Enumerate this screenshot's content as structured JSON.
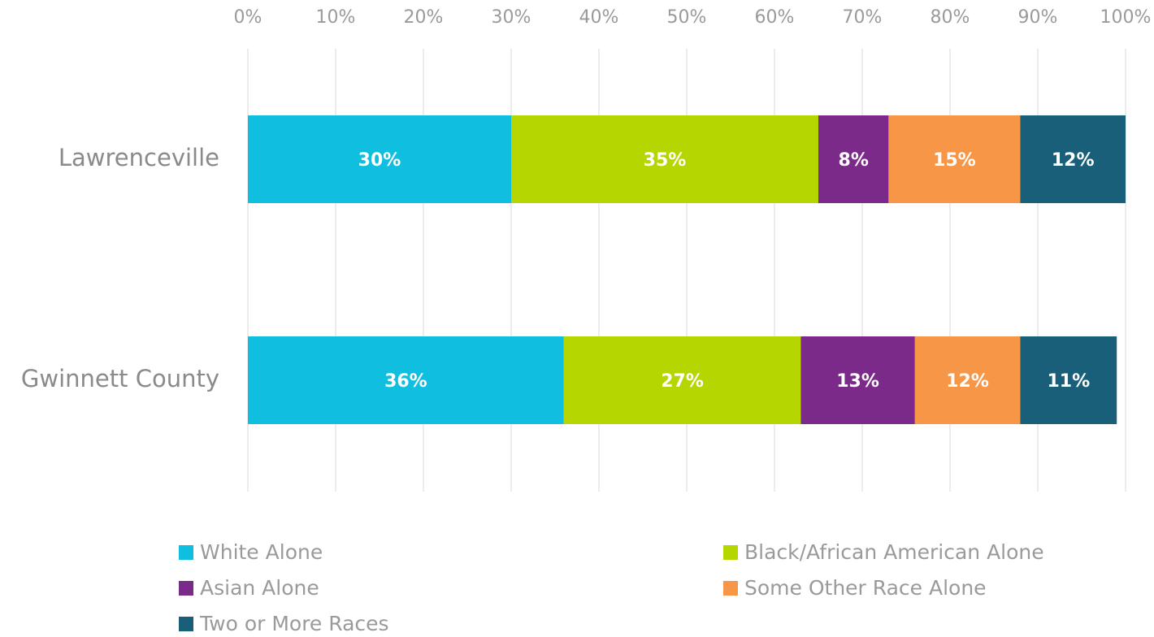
{
  "chart_data": {
    "type": "stacked_barh",
    "categories": [
      "Lawrenceville",
      "Gwinnett County"
    ],
    "series": [
      {
        "name": "White Alone",
        "color": "#10bfe0",
        "values": [
          30,
          36
        ],
        "value_labels": [
          "30%",
          "36%"
        ]
      },
      {
        "name": "Black/African American Alone",
        "color": "#b5d600",
        "values": [
          35,
          27
        ],
        "value_labels": [
          "35%",
          "27%"
        ]
      },
      {
        "name": "Asian Alone",
        "color": "#7b2a8a",
        "values": [
          8,
          13
        ],
        "value_labels": [
          "8%",
          "13%"
        ]
      },
      {
        "name": "Some Other Race Alone",
        "color": "#f79646",
        "values": [
          15,
          12
        ],
        "value_labels": [
          "15%",
          "12%"
        ]
      },
      {
        "name": "Two or More Races",
        "color": "#1a5f7a",
        "values": [
          12,
          11
        ],
        "value_labels": [
          "12%",
          "11%"
        ]
      }
    ],
    "xlim": [
      0,
      100
    ],
    "xticks": [
      {
        "value": 0,
        "label": "0%"
      },
      {
        "value": 10,
        "label": "10%"
      },
      {
        "value": 20,
        "label": "20%"
      },
      {
        "value": 30,
        "label": "30%"
      },
      {
        "value": 40,
        "label": "40%"
      },
      {
        "value": 50,
        "label": "50%"
      },
      {
        "value": 60,
        "label": "60%"
      },
      {
        "value": 70,
        "label": "70%"
      },
      {
        "value": 80,
        "label": "80%"
      },
      {
        "value": 90,
        "label": "90%"
      },
      {
        "value": 100,
        "label": "100%"
      }
    ],
    "grid": true
  }
}
